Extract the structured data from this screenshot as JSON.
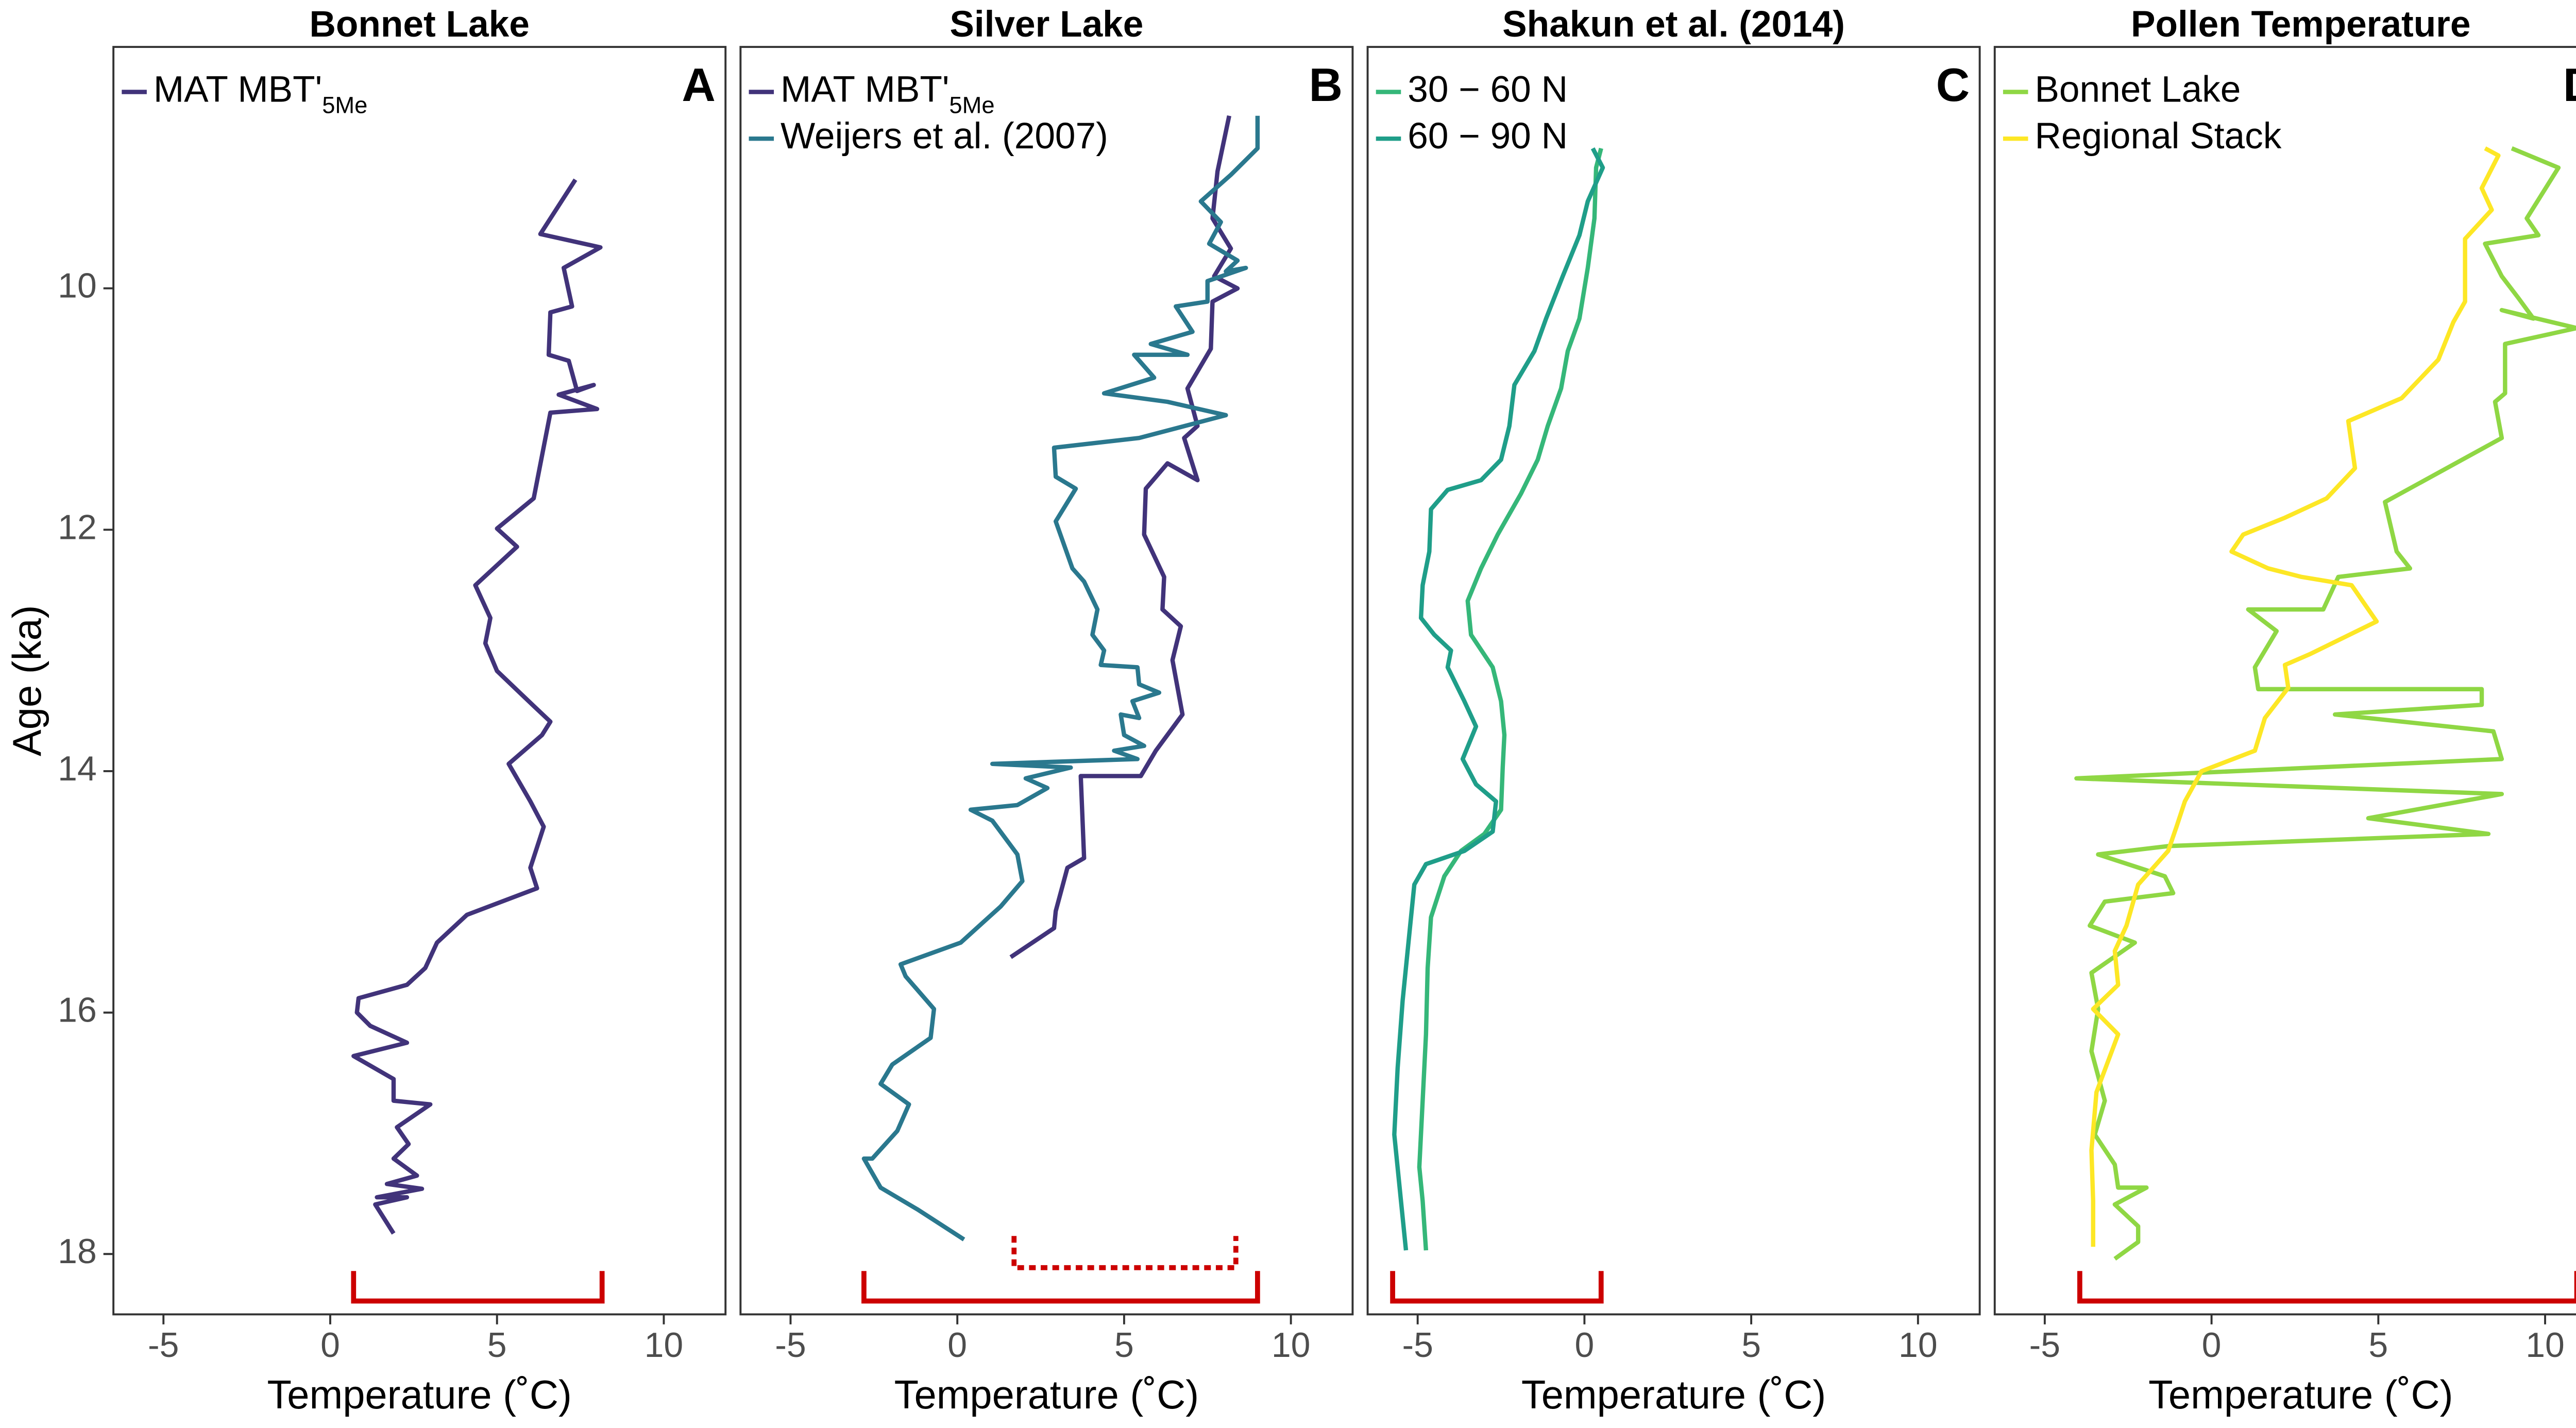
{
  "chart_data": [
    {
      "type": "line",
      "title": "Bonnet Lake",
      "panel_label": "A",
      "xlabel": "Temperature (˚C)",
      "ylabel": "Age (ka)",
      "xlim": [
        -6.5,
        11.85
      ],
      "ylim": [
        8.0,
        18.5
      ],
      "y_inverted": true,
      "xticks": [
        -5,
        0,
        5,
        10
      ],
      "yticks": [
        10,
        12,
        14,
        16,
        18
      ],
      "legend": "top-left",
      "series": [
        {
          "name": "MAT MBT'",
          "name_sub": "5Me",
          "color": "#41337a",
          "x": [
            7.35,
            6.3,
            8.1,
            7.0,
            7.25,
            6.6,
            6.55,
            7.15,
            7.4,
            7.9,
            6.85,
            8.0,
            6.6,
            6.1,
            5.0,
            5.6,
            4.35,
            4.8,
            4.65,
            5.0,
            6.1,
            6.6,
            6.35,
            5.35,
            6.0,
            6.4,
            6.0,
            6.2,
            4.1,
            3.2,
            2.85,
            2.3,
            0.85,
            0.8,
            1.2,
            2.3,
            0.7,
            1.9,
            1.9,
            3.0,
            2.0,
            2.35,
            1.9,
            2.6,
            1.7,
            2.75,
            1.4,
            2.3,
            1.35,
            1.9
          ],
          "y": [
            9.1,
            9.55,
            9.66,
            9.83,
            10.15,
            10.2,
            10.55,
            10.6,
            10.85,
            10.8,
            10.88,
            11.0,
            11.03,
            11.74,
            11.99,
            12.14,
            12.46,
            12.73,
            12.94,
            13.17,
            13.46,
            13.59,
            13.7,
            13.94,
            14.25,
            14.46,
            14.8,
            14.97,
            15.19,
            15.42,
            15.63,
            15.77,
            15.88,
            16.0,
            16.11,
            16.25,
            16.36,
            16.55,
            16.73,
            16.76,
            16.95,
            17.09,
            17.21,
            17.35,
            17.42,
            17.46,
            17.53,
            17.53,
            17.59,
            17.83
          ]
        }
      ],
      "bracket_color": "#cc0000",
      "brackets": [
        {
          "x": [
            0.7,
            8.15
          ],
          "style": "solid"
        }
      ]
    },
    {
      "type": "line",
      "title": "Silver Lake",
      "panel_label": "B",
      "xlabel": "Temperature (˚C)",
      "xlim": [
        -6.5,
        11.85
      ],
      "ylim": [
        8.0,
        18.5
      ],
      "y_inverted": true,
      "xticks": [
        -5,
        0,
        5,
        10
      ],
      "legend": "top-left",
      "series": [
        {
          "name": "MAT MBT'",
          "name_sub": "5Me",
          "color": "#41337a",
          "x": [
            8.15,
            7.8,
            7.65,
            8.2,
            7.7,
            8.4,
            7.65,
            7.6,
            6.9,
            7.2,
            6.8,
            7.2,
            6.3,
            5.65,
            5.6,
            6.2,
            6.15,
            6.7,
            6.45,
            6.75,
            5.95,
            5.5,
            3.7,
            3.8,
            3.3,
            2.95,
            2.9,
            1.6
          ],
          "y": [
            8.57,
            9.03,
            9.42,
            9.67,
            9.9,
            10.0,
            10.11,
            10.5,
            10.83,
            11.14,
            11.24,
            11.59,
            11.45,
            11.66,
            12.04,
            12.39,
            12.66,
            12.8,
            13.08,
            13.53,
            13.83,
            14.04,
            14.04,
            14.72,
            14.8,
            15.16,
            15.3,
            15.54
          ]
        },
        {
          "name": "Weijers et al. (2007)",
          "color": "#2a788e",
          "x": [
            9.0,
            9.0,
            8.2,
            7.3,
            7.9,
            7.55,
            8.4,
            8.05,
            8.65,
            7.5,
            7.5,
            6.55,
            7.05,
            5.8,
            6.9,
            5.3,
            5.9,
            4.4,
            6.3,
            8.05,
            5.45,
            2.9,
            2.95,
            3.55,
            2.95,
            3.45,
            3.8,
            4.2,
            4.05,
            4.4,
            4.3,
            5.4,
            5.45,
            6.05,
            5.25,
            5.45,
            4.9,
            5.0,
            5.6,
            4.7,
            5.4,
            1.05,
            3.4,
            2.05,
            2.7,
            1.8,
            0.4,
            1.05,
            1.8,
            1.95,
            1.3,
            0.1,
            -1.7,
            -1.55,
            -0.7,
            -0.8,
            -1.95,
            -2.3,
            -1.45,
            -1.8,
            -2.55,
            -2.8,
            -2.3,
            -1.2,
            0.2
          ],
          "y": [
            8.57,
            8.84,
            9.06,
            9.28,
            9.45,
            9.63,
            9.77,
            9.86,
            9.83,
            9.94,
            10.11,
            10.15,
            10.36,
            10.46,
            10.55,
            10.55,
            10.74,
            10.87,
            10.94,
            11.05,
            11.24,
            11.32,
            11.56,
            11.66,
            11.93,
            12.32,
            12.43,
            12.66,
            12.87,
            13.0,
            13.12,
            13.14,
            13.28,
            13.35,
            13.42,
            13.56,
            13.53,
            13.7,
            13.79,
            13.83,
            13.9,
            13.94,
            13.97,
            14.06,
            14.14,
            14.28,
            14.32,
            14.41,
            14.69,
            14.91,
            15.12,
            15.42,
            15.6,
            15.7,
            15.97,
            16.21,
            16.43,
            16.59,
            16.76,
            16.98,
            17.21,
            17.21,
            17.45,
            17.63,
            17.88
          ]
        }
      ],
      "bracket_color": "#cc0000",
      "brackets": [
        {
          "x": [
            -2.8,
            9.0
          ],
          "style": "solid"
        },
        {
          "x": [
            1.7,
            8.35
          ],
          "style": "dotted"
        }
      ]
    },
    {
      "type": "line",
      "title": "Shakun et al. (2014)",
      "panel_label": "C",
      "xlabel": "Temperature (˚C)",
      "xlim": [
        -6.5,
        11.85
      ],
      "ylim": [
        8.0,
        18.5
      ],
      "y_inverted": true,
      "xticks": [
        -5,
        0,
        5,
        10
      ],
      "legend": "top-left",
      "series": [
        {
          "name": "30 − 60 N",
          "color": "#35b779",
          "x": [
            0.5,
            0.35,
            0.3,
            0.1,
            -0.15,
            -0.5,
            -0.7,
            -1.1,
            -1.4,
            -1.9,
            -2.6,
            -3.1,
            -3.5,
            -3.4,
            -2.75,
            -2.5,
            -2.4,
            -2.45,
            -2.5,
            -3.0,
            -3.7,
            -4.2,
            -4.6,
            -4.7,
            -4.75,
            -4.85,
            -4.95,
            -4.85,
            -4.75
          ],
          "y": [
            8.84,
            9.0,
            9.42,
            9.83,
            10.25,
            10.52,
            10.83,
            11.14,
            11.42,
            11.7,
            12.04,
            12.32,
            12.59,
            12.87,
            13.14,
            13.42,
            13.7,
            13.97,
            14.32,
            14.52,
            14.66,
            14.87,
            15.21,
            15.63,
            16.18,
            16.73,
            17.28,
            17.56,
            17.97
          ]
        },
        {
          "name": "60 − 90 N",
          "color": "#1f9e89",
          "x": [
            0.25,
            0.55,
            0.1,
            -0.15,
            -0.65,
            -1.15,
            -1.5,
            -2.1,
            -2.25,
            -2.5,
            -3.1,
            -4.1,
            -4.6,
            -4.65,
            -4.85,
            -4.9,
            -4.5,
            -4.0,
            -4.1,
            -3.6,
            -3.25,
            -3.65,
            -3.25,
            -2.65,
            -2.75,
            -3.6,
            -4.75,
            -5.1,
            -5.25,
            -5.45,
            -5.6,
            -5.7,
            -5.5,
            -5.35
          ],
          "y": [
            8.84,
            9.0,
            9.28,
            9.56,
            9.9,
            10.25,
            10.52,
            10.8,
            11.14,
            11.42,
            11.59,
            11.67,
            11.83,
            12.18,
            12.46,
            12.73,
            12.87,
            13.0,
            13.14,
            13.42,
            13.63,
            13.9,
            14.11,
            14.25,
            14.5,
            14.66,
            14.77,
            14.94,
            15.35,
            15.9,
            16.46,
            17.01,
            17.56,
            17.97
          ]
        }
      ],
      "bracket_color": "#cc0000",
      "brackets": [
        {
          "x": [
            -5.75,
            0.5
          ],
          "style": "solid"
        }
      ]
    },
    {
      "type": "line",
      "title": "Pollen Temperature",
      "panel_label": "D",
      "xlabel": "Temperature (˚C)",
      "xlim": [
        -6.5,
        11.85
      ],
      "ylim": [
        8.0,
        18.5
      ],
      "y_inverted": true,
      "xticks": [
        -5,
        0,
        5,
        10
      ],
      "legend": "top-left",
      "series": [
        {
          "name": "Bonnet Lake",
          "color": "#8fd744",
          "x": [
            9.0,
            10.4,
            9.45,
            9.8,
            8.2,
            8.7,
            9.2,
            9.65,
            8.7,
            10.95,
            8.8,
            8.8,
            8.5,
            8.7,
            5.2,
            5.55,
            5.95,
            3.8,
            3.35,
            1.1,
            1.95,
            1.3,
            1.4,
            8.1,
            8.1,
            3.7,
            8.45,
            8.7,
            -4.05,
            8.7,
            4.7,
            8.3,
            -1.3,
            -3.4,
            -1.4,
            -1.15,
            -3.2,
            -3.65,
            -2.3,
            -3.6,
            -3.4,
            -3.6,
            -3.2,
            -3.5,
            -2.9,
            -2.8,
            -1.95,
            -2.9,
            -2.2,
            -2.2,
            -2.9
          ],
          "y": [
            8.84,
            9.0,
            9.42,
            9.56,
            9.63,
            9.9,
            10.08,
            10.25,
            10.18,
            10.33,
            10.46,
            10.87,
            10.94,
            11.24,
            11.77,
            12.18,
            12.32,
            12.39,
            12.66,
            12.66,
            12.84,
            13.14,
            13.32,
            13.32,
            13.45,
            13.53,
            13.67,
            13.9,
            14.06,
            14.19,
            14.39,
            14.52,
            14.62,
            14.69,
            14.87,
            15.01,
            15.08,
            15.28,
            15.42,
            15.67,
            15.97,
            16.32,
            16.73,
            17.01,
            17.26,
            17.45,
            17.45,
            17.59,
            17.77,
            17.9,
            18.04
          ]
        },
        {
          "name": "Regional Stack",
          "color": "#fde725",
          "x": [
            8.2,
            8.6,
            8.1,
            8.4,
            7.6,
            7.6,
            7.6,
            7.25,
            6.8,
            5.7,
            4.1,
            4.3,
            3.45,
            2.2,
            0.95,
            0.6,
            1.7,
            2.7,
            4.2,
            4.95,
            2.95,
            2.2,
            2.3,
            1.6,
            1.3,
            -0.3,
            -0.8,
            -1.05,
            -1.3,
            -2.2,
            -2.55,
            -2.9,
            -2.8,
            -3.55,
            -2.8,
            -3.45,
            -3.6,
            -3.55,
            -3.55
          ],
          "y": [
            8.84,
            8.9,
            9.17,
            9.35,
            9.59,
            9.86,
            10.11,
            10.28,
            10.59,
            10.91,
            11.1,
            11.49,
            11.74,
            11.9,
            12.04,
            12.18,
            12.32,
            12.39,
            12.46,
            12.76,
            13.03,
            13.12,
            13.31,
            13.56,
            13.83,
            14.0,
            14.25,
            14.46,
            14.66,
            14.94,
            15.28,
            15.49,
            15.77,
            15.97,
            16.18,
            16.66,
            17.14,
            17.56,
            17.94
          ]
        }
      ],
      "bracket_color": "#cc0000",
      "brackets": [
        {
          "x": [
            -3.95,
            10.95
          ],
          "style": "solid"
        }
      ]
    }
  ]
}
